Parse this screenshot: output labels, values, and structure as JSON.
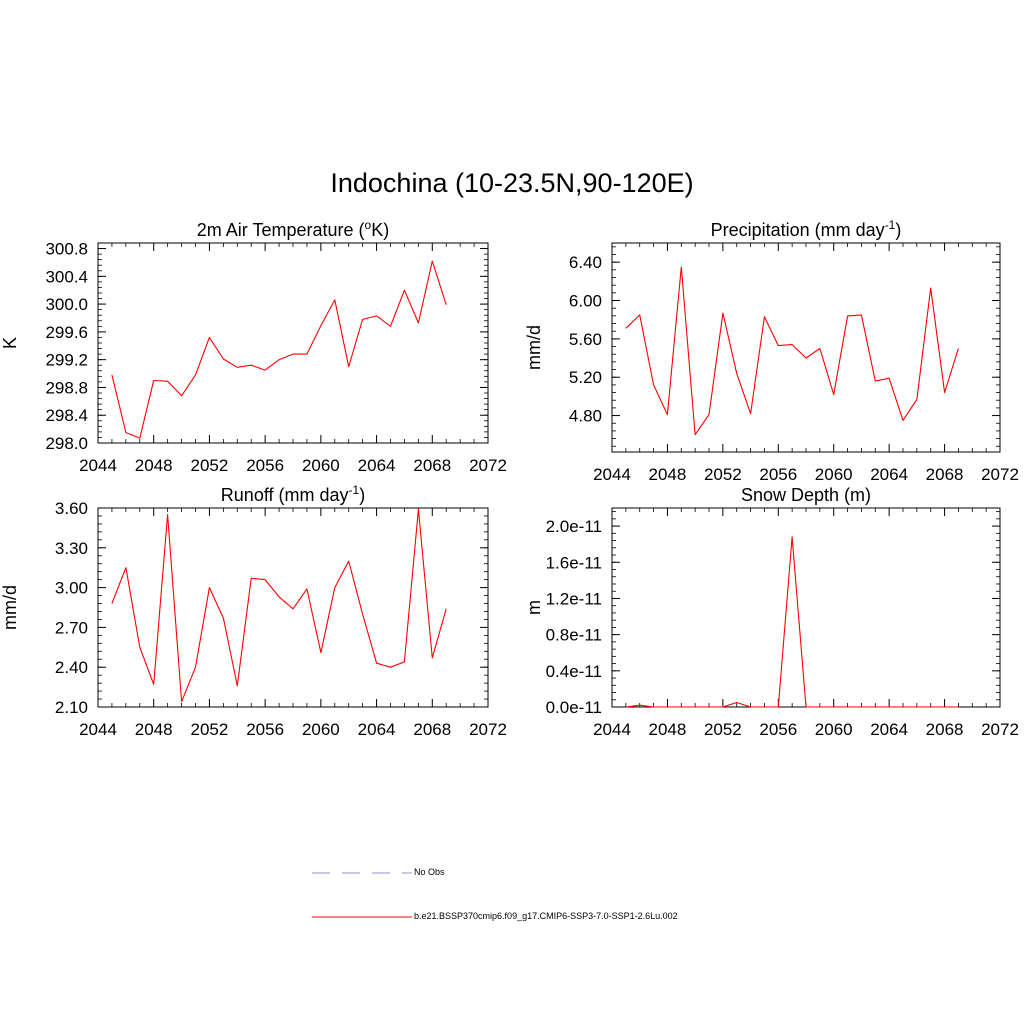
{
  "title": "Indochina (10-23.5N,90-120E)",
  "legend": {
    "items": [
      {
        "label": "No Obs",
        "style": "dashed",
        "color": "#a8a8e0"
      },
      {
        "label": "b.e21.BSSP370cmip6.f09_g17.CMIP6-SSP3-7.0-SSP1-2.6Lu.002",
        "style": "solid",
        "color": "#ff0000"
      }
    ]
  },
  "chart_data": [
    {
      "type": "line",
      "title": "2m Air Temperature (",
      "title_sup": "o",
      "title_tail": "K)",
      "ylabel": "K",
      "xlim": [
        2044,
        2072
      ],
      "ylim": [
        298.0,
        300.88
      ],
      "xticks": [
        2044,
        2048,
        2052,
        2056,
        2060,
        2064,
        2068,
        2072
      ],
      "yticks": [
        298.0,
        298.4,
        298.8,
        299.2,
        299.6,
        300.0,
        300.4,
        300.8
      ],
      "ytick_labels": [
        "298.0",
        "298.4",
        "298.8",
        "299.2",
        "299.6",
        "300.0",
        "300.4",
        "300.8"
      ],
      "grid": false,
      "series": [
        {
          "color": "#ff0000",
          "x": [
            2045,
            2046,
            2047,
            2048,
            2049,
            2050,
            2051,
            2052,
            2053,
            2054,
            2055,
            2056,
            2057,
            2058,
            2059,
            2060,
            2061,
            2062,
            2063,
            2064,
            2065,
            2066,
            2067,
            2068,
            2069
          ],
          "y": [
            298.98,
            298.15,
            298.07,
            298.9,
            298.89,
            298.68,
            298.98,
            299.52,
            299.21,
            299.09,
            299.12,
            299.05,
            299.2,
            299.28,
            299.28,
            299.69,
            300.06,
            299.1,
            299.78,
            299.83,
            299.68,
            300.2,
            299.73,
            300.62,
            299.99
          ]
        }
      ]
    },
    {
      "type": "line",
      "title": "Precipitation (mm day",
      "title_sup": "-1",
      "title_tail": ")",
      "ylabel": "mm/d",
      "xlim": [
        2044,
        2072
      ],
      "ylim": [
        4.42,
        6.6
      ],
      "xticks": [
        2044,
        2048,
        2052,
        2056,
        2060,
        2064,
        2068,
        2072
      ],
      "yticks": [
        4.8,
        5.2,
        5.6,
        6.0,
        6.4
      ],
      "ytick_labels": [
        "4.80",
        "5.20",
        "5.60",
        "6.00",
        "6.40"
      ],
      "grid": false,
      "series": [
        {
          "color": "#ff0000",
          "x": [
            2045,
            2046,
            2047,
            2048,
            2049,
            2050,
            2051,
            2052,
            2053,
            2054,
            2055,
            2056,
            2057,
            2058,
            2059,
            2060,
            2061,
            2062,
            2063,
            2064,
            2065,
            2066,
            2067,
            2068,
            2069
          ],
          "y": [
            5.71,
            5.85,
            5.12,
            4.81,
            6.35,
            4.6,
            4.81,
            5.87,
            5.24,
            4.82,
            5.83,
            5.53,
            5.54,
            5.4,
            5.5,
            5.02,
            5.84,
            5.85,
            5.16,
            5.19,
            4.75,
            4.97,
            6.13,
            5.04,
            5.5
          ]
        }
      ]
    },
    {
      "type": "line",
      "title": "Runoff (mm day",
      "title_sup": "-1",
      "title_tail": ")",
      "ylabel": "mm/d",
      "xlim": [
        2044,
        2072
      ],
      "ylim": [
        2.1,
        3.6
      ],
      "xticks": [
        2044,
        2048,
        2052,
        2056,
        2060,
        2064,
        2068,
        2072
      ],
      "yticks": [
        2.1,
        2.4,
        2.7,
        3.0,
        3.3,
        3.6
      ],
      "ytick_labels": [
        "2.10",
        "2.40",
        "2.70",
        "3.00",
        "3.30",
        "3.60"
      ],
      "grid": false,
      "series": [
        {
          "color": "#ff0000",
          "x": [
            2045,
            2046,
            2047,
            2048,
            2049,
            2050,
            2051,
            2052,
            2053,
            2054,
            2055,
            2056,
            2057,
            2058,
            2059,
            2060,
            2061,
            2062,
            2063,
            2064,
            2065,
            2066,
            2067,
            2068,
            2069
          ],
          "y": [
            2.88,
            3.15,
            2.55,
            2.27,
            3.55,
            2.14,
            2.4,
            3.0,
            2.77,
            2.26,
            3.07,
            3.06,
            2.93,
            2.84,
            2.99,
            2.51,
            3.0,
            3.2,
            2.8,
            2.43,
            2.4,
            2.44,
            3.59,
            2.47,
            2.84
          ]
        }
      ]
    },
    {
      "type": "line",
      "title": "Snow Depth (m)",
      "title_sup": "",
      "title_tail": "",
      "ylabel": "m",
      "xlim": [
        2044,
        2072
      ],
      "ylim": [
        0,
        2.2e-11
      ],
      "xticks": [
        2044,
        2048,
        2052,
        2056,
        2060,
        2064,
        2068,
        2072
      ],
      "yticks": [
        0,
        4e-12,
        8e-12,
        1.2e-11,
        1.6e-11,
        2e-11
      ],
      "ytick_labels": [
        "0.0e-11",
        "0.4e-11",
        "0.8e-11",
        "1.2e-11",
        "1.6e-11",
        "2.0e-11"
      ],
      "grid": false,
      "series": [
        {
          "color": "#ff0000",
          "x": [
            2045,
            2046,
            2047,
            2048,
            2049,
            2050,
            2051,
            2052,
            2053,
            2054,
            2055,
            2056,
            2057,
            2058,
            2059,
            2060,
            2061,
            2062,
            2063,
            2064,
            2065,
            2066,
            2067,
            2068,
            2069
          ],
          "y": [
            0,
            2e-13,
            0,
            0,
            0,
            0,
            0,
            0,
            5e-13,
            0,
            0,
            0,
            1.88e-11,
            0,
            0,
            0,
            0,
            0,
            0,
            0,
            0,
            0,
            0,
            0,
            0
          ]
        }
      ]
    }
  ]
}
